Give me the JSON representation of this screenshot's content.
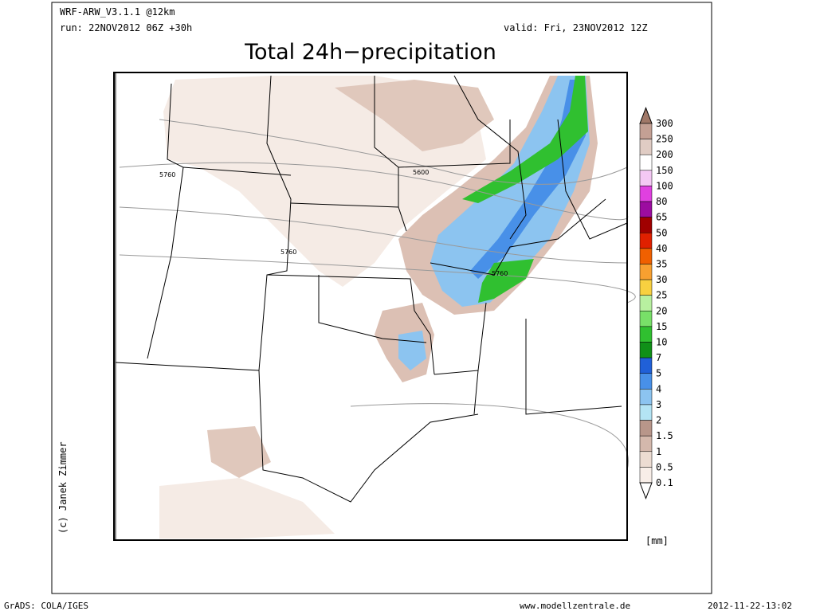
{
  "header": {
    "model": "WRF-ARW_V3.1.1 @12km",
    "run": "run: 22NOV2012 06Z +30h",
    "valid": "valid: Fri, 23NOV2012 12Z",
    "title": "Total 24h−precipitation"
  },
  "map": {
    "contour_labels": [
      "5760",
      "5600",
      "5760",
      "5760"
    ]
  },
  "legend": {
    "levels": [
      "300",
      "250",
      "200",
      "150",
      "100",
      "80",
      "65",
      "50",
      "40",
      "35",
      "30",
      "25",
      "20",
      "15",
      "10",
      "7",
      "5",
      "4",
      "3",
      "2",
      "1.5",
      "1",
      "0.5",
      "0.1"
    ],
    "colors": [
      "#a07868",
      "#c4a094",
      "#e0ccc4",
      "#ffffff",
      "#f4c8f4",
      "#e040e0",
      "#9c0ca0",
      "#a00000",
      "#e02000",
      "#f06000",
      "#f8a030",
      "#f8d040",
      "#b8f0a0",
      "#78e068",
      "#30c030",
      "#109018",
      "#2060d8",
      "#4890e8",
      "#8cc4f0",
      "#b4e4f4",
      "#b8968a",
      "#d4b8ac",
      "#ecdcd2",
      "#f8eee8",
      "#ffffff"
    ],
    "unit": "[mm]"
  },
  "credit": "(c) Janek Zimmer",
  "footer": {
    "software": "GrADS: COLA/IGES",
    "site": "www.modellzentrale.de",
    "timestamp": "2012-11-22-13:02"
  }
}
